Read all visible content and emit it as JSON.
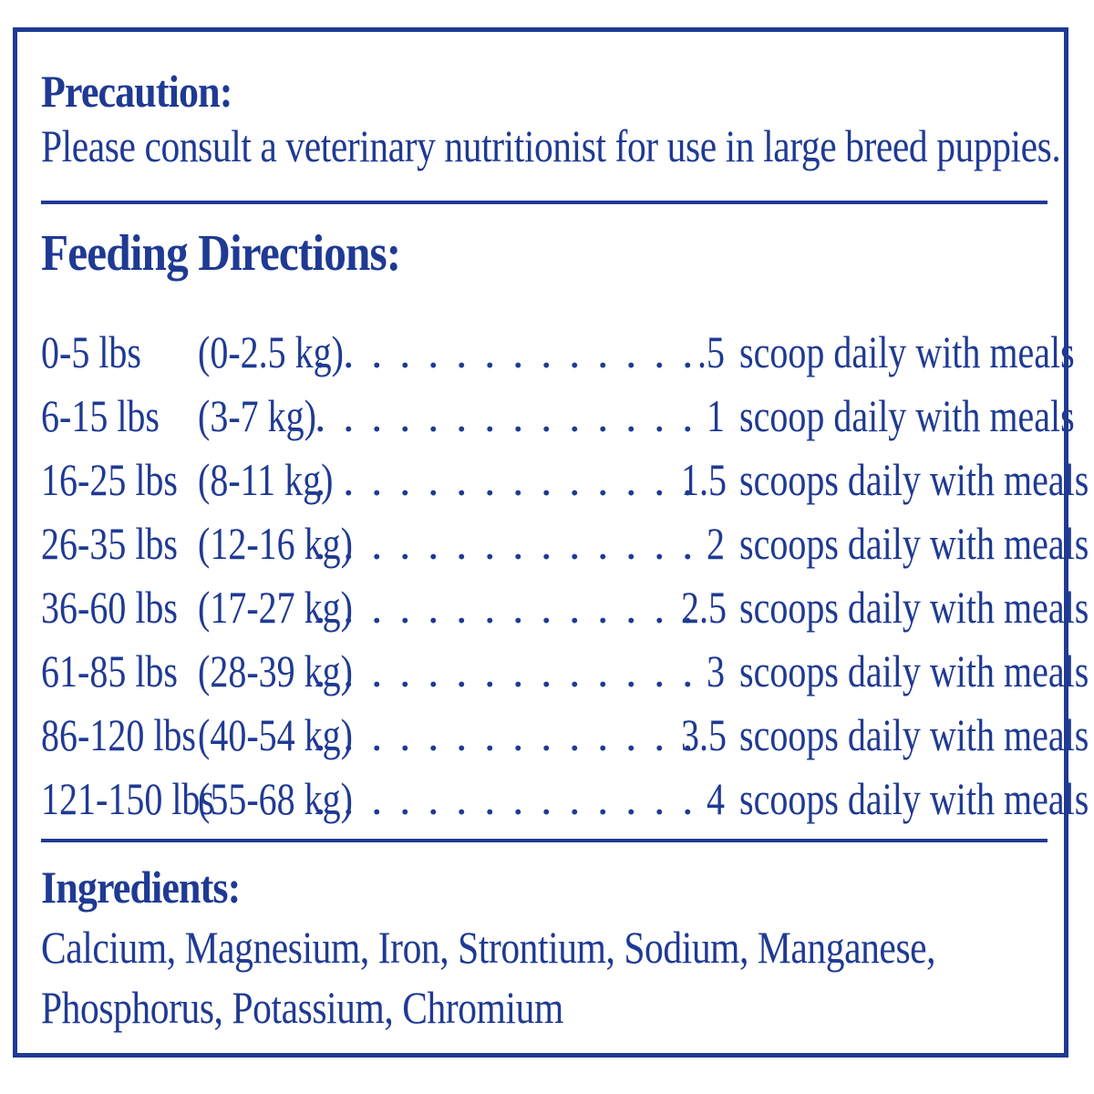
{
  "precaution": {
    "heading": "Precaution:",
    "text": "Please consult a veterinary nutritionist for use in large breed puppies."
  },
  "feeding": {
    "heading": "Feeding Directions:",
    "rows": [
      {
        "lbs": "0-5 lbs",
        "kg": "(0-2.5 kg)",
        "dots": ". . . . . . . . . . . . . . . . . . . . . . . . .",
        "amount": ".5",
        "desc": "scoop daily with meals"
      },
      {
        "lbs": "6-15 lbs",
        "kg": "(3-7 kg)",
        "dots": ". . . . . . . . . . . . . . . . . . . . . . . . .",
        "amount": "1",
        "desc": "scoop daily with meals"
      },
      {
        "lbs": "16-25 lbs",
        "kg": "(8-11 kg)",
        "dots": ". . . . . . . . . . . . . . . . . . . . . . . . .",
        "amount": "1.5",
        "desc": "scoops daily with meals"
      },
      {
        "lbs": "26-35 lbs",
        "kg": "(12-16 kg)",
        "dots": ". . . . . . . . . . . . . . . . . . . . . . . . .",
        "amount": "2",
        "desc": "scoops daily with meals"
      },
      {
        "lbs": "36-60 lbs",
        "kg": "(17-27 kg)",
        "dots": ". . . . . . . . . . . . . . . . . . . . . . . . .",
        "amount": "2.5",
        "desc": "scoops daily with meals"
      },
      {
        "lbs": "61-85 lbs",
        "kg": "(28-39 kg)",
        "dots": ". . . . . . . . . . . . . . . . . . . . . . . . .",
        "amount": "3",
        "desc": "scoops daily with meals"
      },
      {
        "lbs": "86-120 lbs",
        "kg": "(40-54 kg)",
        "dots": ". . . . . . . . . . . . . . . . . . . . . . . . .",
        "amount": "3.5",
        "desc": "scoops daily with meals"
      },
      {
        "lbs": "121-150 lbs",
        "kg": "(55-68 kg)",
        "dots": ". . . . . . . . . . . . . . . . . . . . . . . . .",
        "amount": "4",
        "desc": "scoops daily with meals"
      }
    ]
  },
  "ingredients": {
    "heading": "Ingredients:",
    "text": "Calcium, Magnesium, Iron, Strontium, Sodium, Manganese, Phosphorus, Potassium, Chromium"
  },
  "colors": {
    "text": "#1f3a93",
    "border": "#1f3a93",
    "background": "#ffffff"
  }
}
